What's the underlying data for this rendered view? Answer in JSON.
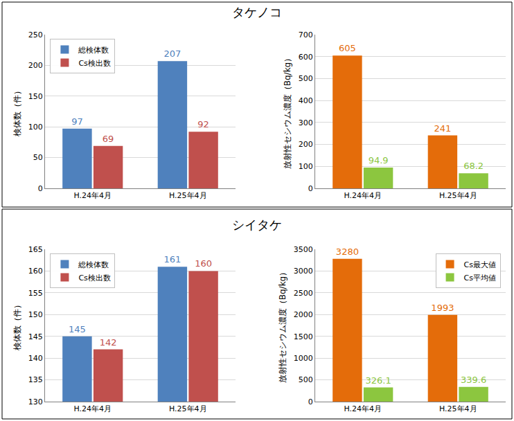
{
  "chart_data": [
    {
      "type": "bar",
      "title": "タケノコ",
      "ylabel": "検体数（件）",
      "categories": [
        "H.24年4月",
        "H.25年4月"
      ],
      "series": [
        {
          "name": "総検体数",
          "color": "#4f81bd",
          "values": [
            97,
            207
          ]
        },
        {
          "name": "Cs検出数",
          "color": "#c0504d",
          "values": [
            69,
            92
          ]
        }
      ],
      "ylim": [
        0,
        250
      ],
      "yticks": [
        0,
        50,
        100,
        150,
        200,
        250
      ],
      "grid": true,
      "legend": "upper left",
      "data_labels": true
    },
    {
      "type": "bar",
      "ylabel": "放射性セシウム濃度（Bq/kg）",
      "categories": [
        "H.24年4月",
        "H.25年4月"
      ],
      "series": [
        {
          "name": "Cs最大値",
          "color": "#e46c0a",
          "values": [
            605,
            241
          ]
        },
        {
          "name": "Cs平均値",
          "color": "#8cc63f",
          "values": [
            94.9,
            68.2
          ]
        }
      ],
      "ylim": [
        0,
        700
      ],
      "yticks": [
        0,
        100,
        200,
        300,
        400,
        500,
        600,
        700
      ],
      "grid": true,
      "data_labels": true
    },
    {
      "type": "bar",
      "title": "シイタケ",
      "ylabel": "検体数（件）",
      "categories": [
        "H.24年4月",
        "H.25年4月"
      ],
      "series": [
        {
          "name": "総検体数",
          "color": "#4f81bd",
          "values": [
            145,
            161
          ]
        },
        {
          "name": "Cs検出数",
          "color": "#c0504d",
          "values": [
            142,
            160
          ]
        }
      ],
      "ylim": [
        130,
        165
      ],
      "yticks": [
        130,
        135,
        140,
        145,
        150,
        155,
        160,
        165
      ],
      "grid": true,
      "legend": "upper left",
      "data_labels": true
    },
    {
      "type": "bar",
      "ylabel": "放射性セシウム濃度（Bq/kg）",
      "categories": [
        "H.24年4月",
        "H.25年4月"
      ],
      "series": [
        {
          "name": "Cs最大値",
          "color": "#e46c0a",
          "values": [
            3280,
            1993
          ]
        },
        {
          "name": "Cs平均値",
          "color": "#8cc63f",
          "values": [
            326.1,
            339.6
          ]
        }
      ],
      "ylim": [
        0,
        3500
      ],
      "yticks": [
        0,
        500,
        1000,
        1500,
        2000,
        2500,
        3000,
        3500
      ],
      "grid": true,
      "legend": "upper right",
      "data_labels": true
    }
  ]
}
